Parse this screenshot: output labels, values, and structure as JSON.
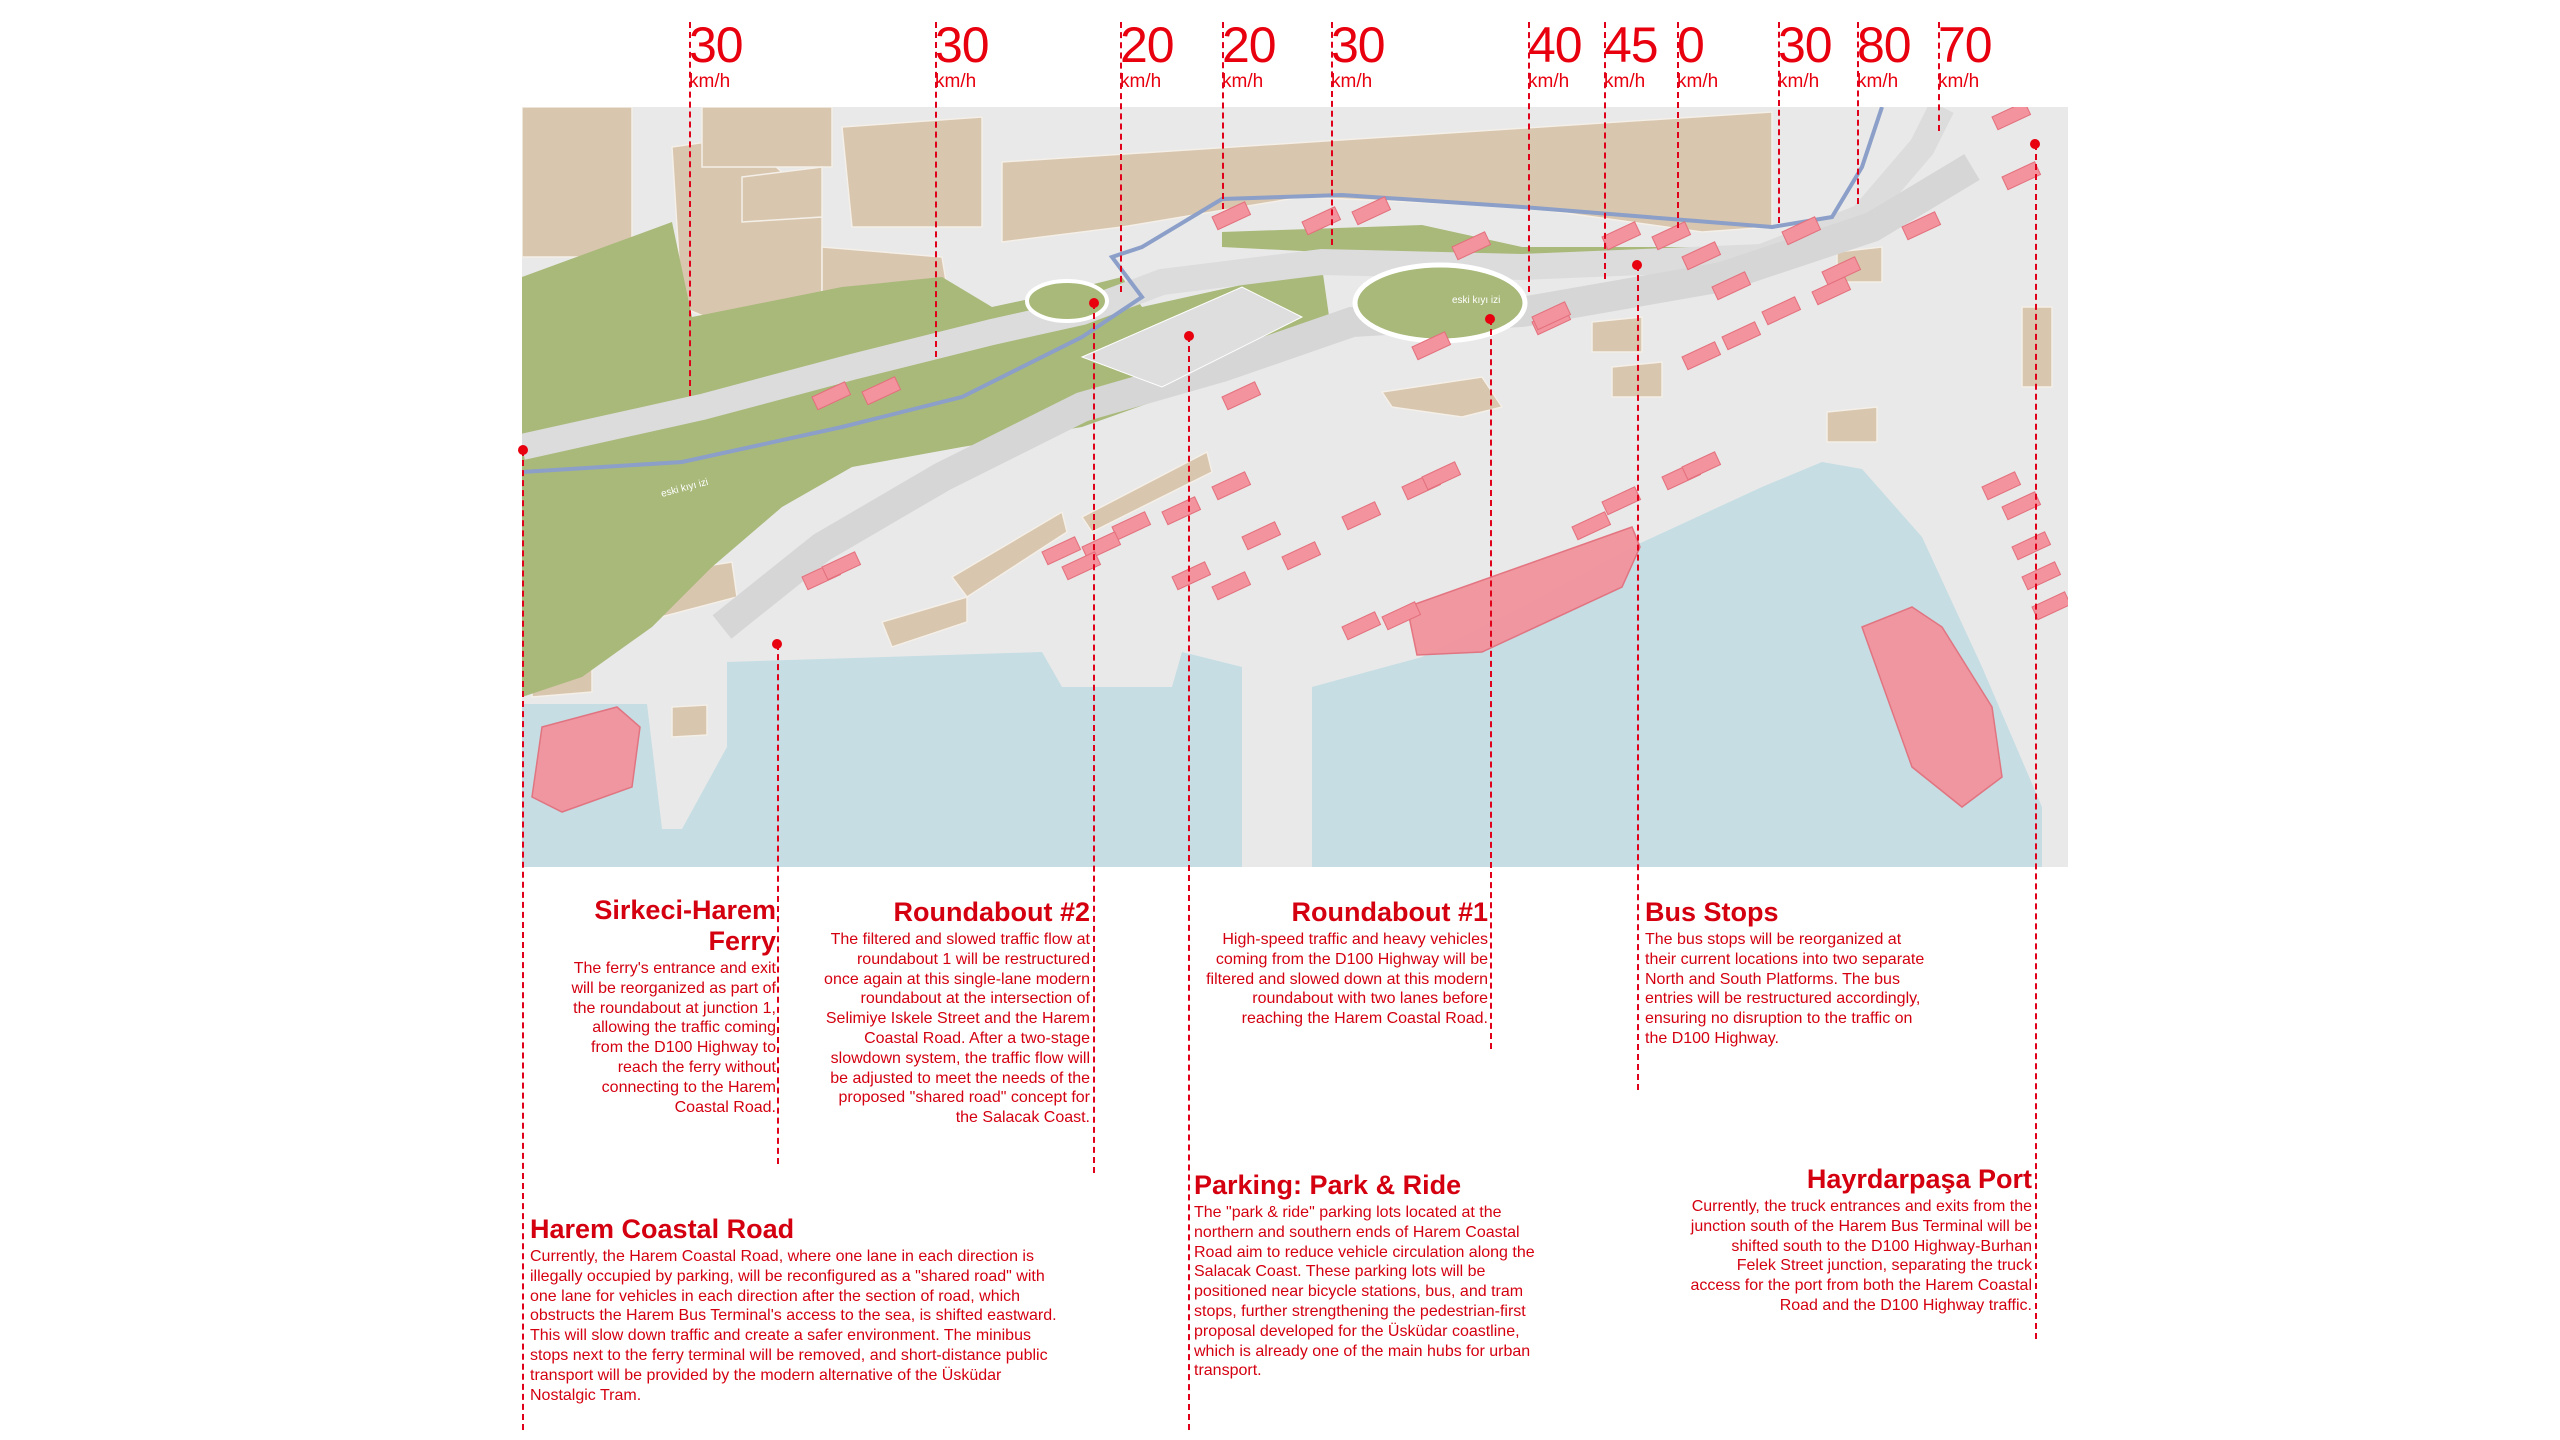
{
  "speed_limits": [
    {
      "value": "30",
      "unit": "km/h"
    },
    {
      "value": "30",
      "unit": "km/h"
    },
    {
      "value": "20",
      "unit": "km/h"
    },
    {
      "value": "20",
      "unit": "km/h"
    },
    {
      "value": "30",
      "unit": "km/h"
    },
    {
      "value": "40",
      "unit": "km/h"
    },
    {
      "value": "45",
      "unit": "km/h"
    },
    {
      "value": "0",
      "unit": "km/h"
    },
    {
      "value": "30",
      "unit": "km/h"
    },
    {
      "value": "80",
      "unit": "km/h"
    },
    {
      "value": "70",
      "unit": "km/h"
    }
  ],
  "map": {
    "labels": [
      "eski kıyı izi",
      "eski kıyı izi"
    ],
    "colors": {
      "water": "#c5dde3",
      "land": "#e9e9e9",
      "park": "#a9b97a",
      "building": "#d8c6ae",
      "vehicle": "#f2939d",
      "accent": "#e8000f",
      "road_line": "#8b9fc8"
    }
  },
  "notes": {
    "ferry": {
      "title": "Sirkeci-Harem Ferry",
      "body": "The ferry's entrance and exit will be reorganized as part of the roundabout at junction 1, allowing the traffic coming from the D100 Highway to reach the ferry without connecting to the Harem Coastal Road."
    },
    "roundabout2": {
      "title": "Roundabout #2",
      "body": "The filtered and slowed traffic flow at roundabout 1 will be restructured once again at this single-lane modern roundabout at the intersection of Selimiye Iskele Street and the Harem Coastal Road. After a two-stage slowdown system, the traffic flow will be adjusted to meet the needs of the proposed \"shared road\" concept for the Salacak Coast."
    },
    "roundabout1": {
      "title": "Roundabout #1",
      "body": "High-speed traffic and heavy vehicles coming from the D100 Highway will be filtered and slowed down at this modern roundabout with two lanes before reaching the Harem Coastal Road."
    },
    "bus_stops": {
      "title": "Bus Stops",
      "body": "The bus stops will be reorganized at their current locations into two separate North and South Platforms. The bus entries will be restructured accordingly, ensuring no disruption to the traffic on the D100 Highway."
    },
    "parking": {
      "title": "Parking: Park & Ride",
      "body": "The \"park & ride\" parking lots located at the northern and southern ends of Harem Coastal Road aim to reduce vehicle circulation along the Salacak Coast. These parking lots will be positioned near bicycle stations, bus, and tram stops, further strengthening the pedestrian-first proposal developed for the Üsküdar coastline, which is already one of the main hubs for urban transport."
    },
    "coastal_road": {
      "title": "Harem Coastal Road",
      "body": "Currently, the Harem Coastal Road, where one lane in each direction is illegally occupied by parking, will be reconfigured as a \"shared road\" with one lane for vehicles in each direction after the section of road, which obstructs the Harem Bus Terminal's access to the sea, is shifted eastward. This will slow down traffic and create a safer environment. The minibus stops next to the ferry terminal will be removed, and short-distance public transport will be provided by the modern alternative of the Üsküdar Nostalgic Tram."
    },
    "port": {
      "title": "Hayrdarpaşa Port",
      "body": "Currently, the truck entrances and exits from the junction south of the Harem Bus Terminal will be shifted south to the D100 Highway-Burhan Felek Street junction, separating the truck access for the port from both the Harem Coastal Road and the D100 Highway traffic."
    }
  }
}
